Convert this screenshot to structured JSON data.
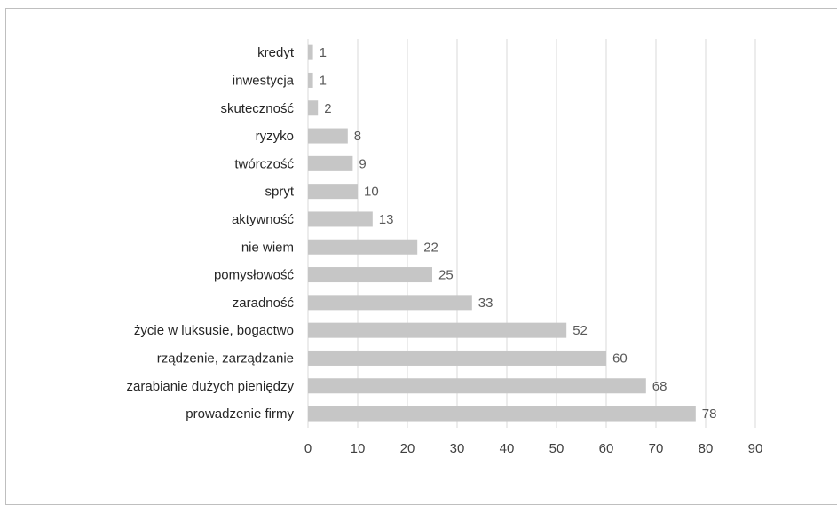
{
  "chart_data": {
    "type": "bar",
    "orientation": "horizontal",
    "title": "",
    "xlabel": "",
    "ylabel": "",
    "categories": [
      "kredyt",
      "inwestycja",
      "skuteczność",
      "ryzyko",
      "twórczość",
      "spryt",
      "aktywność",
      "nie wiem",
      "pomysłowość",
      "zaradność",
      "życie w luksusie, bogactwo",
      "rządzenie, zarządzanie",
      "zarabianie dużych pieniędzy",
      "prowadzenie firmy"
    ],
    "values": [
      1,
      1,
      2,
      8,
      9,
      10,
      13,
      22,
      25,
      33,
      52,
      60,
      68,
      78
    ],
    "xlim": [
      0,
      90
    ],
    "xticks": [
      "0",
      "10",
      "20",
      "30",
      "40",
      "50",
      "60",
      "70",
      "80",
      "90"
    ],
    "grid": true,
    "legend": "none",
    "data_labels": true,
    "colors": {
      "bar": "#c6c6c6",
      "grid": "#d9d9d9",
      "data_label": "#595959",
      "category_label": "#262626",
      "tick_label": "#404040",
      "border": "#bfbfbf"
    }
  }
}
